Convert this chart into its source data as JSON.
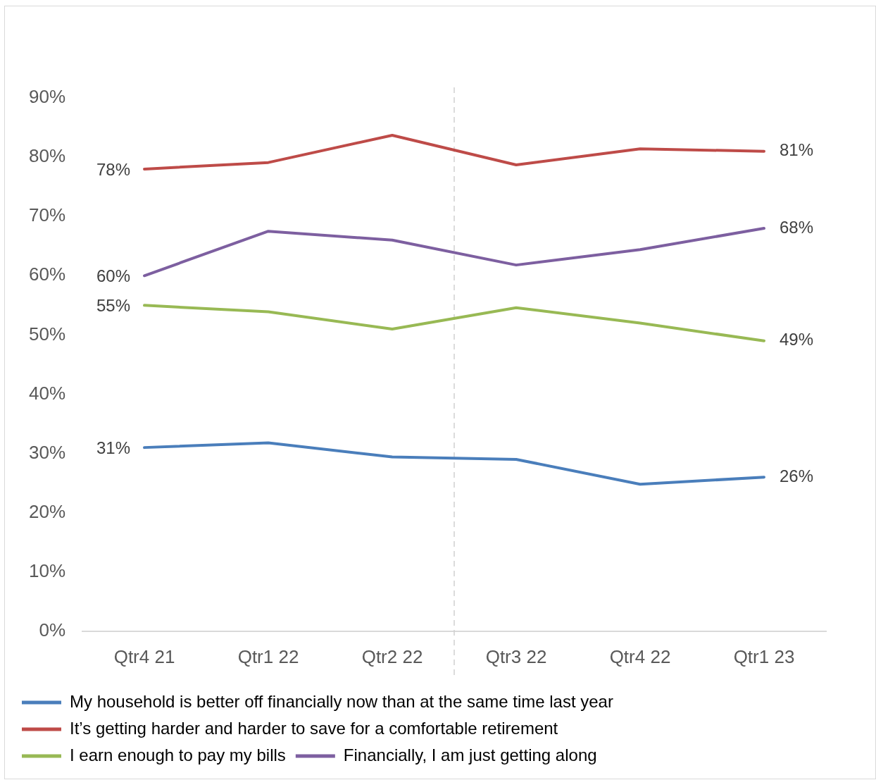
{
  "chart_data": {
    "type": "line",
    "categories": [
      "Qtr4 21",
      "Qtr1 22",
      "Qtr2 22",
      "Qtr3 22",
      "Qtr4 22",
      "Qtr1 23"
    ],
    "series": [
      {
        "name": "My household is better off financially now than at the same time last year",
        "color": "#4a7ebb",
        "values": [
          31,
          31.8,
          29.4,
          29,
          24.8,
          26
        ],
        "value_labels": [
          "31%",
          null,
          null,
          null,
          null,
          "26%"
        ]
      },
      {
        "name": "It’s getting harder and harder to save for a comfortable retirement",
        "color": "#be4b48",
        "values": [
          78,
          79.1,
          83.7,
          78.7,
          81.4,
          81
        ],
        "value_labels": [
          "78%",
          null,
          null,
          null,
          null,
          "81%"
        ]
      },
      {
        "name": "I earn enough to pay my bills",
        "color": "#98b954",
        "values": [
          55,
          53.9,
          51,
          54.6,
          52,
          49
        ],
        "value_labels": [
          "55%",
          null,
          null,
          null,
          null,
          "49%"
        ]
      },
      {
        "name": "Financially, I am just getting along",
        "color": "#7d5fa0",
        "values": [
          60,
          67.5,
          66,
          61.8,
          64.4,
          68
        ],
        "value_labels": [
          "60%",
          null,
          null,
          null,
          null,
          "68%"
        ]
      }
    ],
    "ylim": [
      0,
      90
    ],
    "yticks": [
      {
        "value": 0,
        "label": "0%"
      },
      {
        "value": 10,
        "label": "10%"
      },
      {
        "value": 20,
        "label": "20%"
      },
      {
        "value": 30,
        "label": "30%"
      },
      {
        "value": 40,
        "label": "40%"
      },
      {
        "value": 50,
        "label": "50%"
      },
      {
        "value": 60,
        "label": "60%"
      },
      {
        "value": 70,
        "label": "70%"
      },
      {
        "value": 80,
        "label": "80%"
      },
      {
        "value": 90,
        "label": "90%"
      }
    ],
    "grid": false,
    "marker": "none",
    "line_style": "solid",
    "legend": "bottom"
  }
}
